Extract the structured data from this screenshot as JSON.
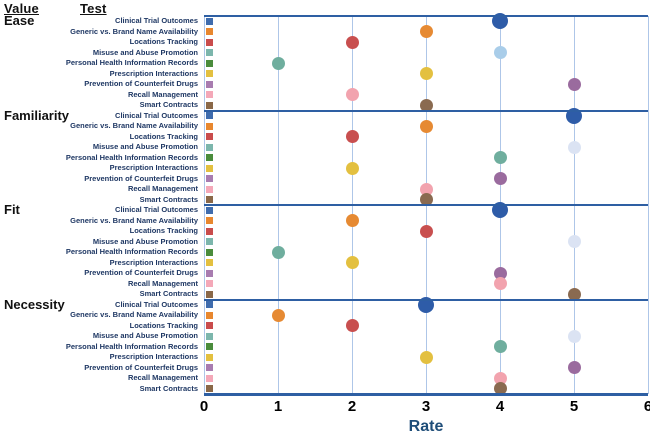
{
  "header": {
    "value_label": "Value",
    "test_label": "Test"
  },
  "colors": {
    "separator_line": "#2e5fa3",
    "gridline": "#aec6e8",
    "axis_line": "#2e5fa3",
    "test_label_text": "#1f3864",
    "group_label_text": "#111111",
    "tick_label_text": "#000000",
    "axis_title_text": "#1f4e79"
  },
  "chart_data": {
    "type": "scatter",
    "title": "",
    "xlabel": "Rate",
    "ylabel": "",
    "xlim": [
      0,
      6
    ],
    "x_ticks": [
      "0",
      "1",
      "2",
      "3",
      "4",
      "5",
      "6"
    ],
    "grid": "vertical-only",
    "legend_position": "left-of-plot-per-row",
    "value_groups": [
      "Ease",
      "Familiarity",
      "Fit",
      "Necessity"
    ],
    "tests": [
      "Clinical Trial Outcomes",
      "Generic vs. Brand Name Availability",
      "Locations Tracking",
      "Misuse and Abuse Promotion",
      "Personal Health Information Records",
      "Prescription Interactions",
      "Prevention of Counterfeit Drugs",
      "Recall Management",
      "Smart Contracts"
    ],
    "series": [
      {
        "name": "Clinical Trial Outcomes",
        "legend_color": "#3f6cad",
        "dot_colors": [
          "#2e5ca8",
          "#2e5ca8",
          "#2e5ca8",
          "#2e5ca8"
        ],
        "values": [
          4,
          5,
          4,
          3
        ]
      },
      {
        "name": "Generic vs. Brand Name Availability",
        "legend_color": "#e8872e",
        "dot_colors": [
          "#e68a33",
          "#e68a33",
          "#e68a33",
          "#e68a33"
        ],
        "values": [
          3,
          3,
          2,
          1
        ]
      },
      {
        "name": "Locations Tracking",
        "legend_color": "#c94c4c",
        "dot_colors": [
          "#c84f4f",
          "#c84f4f",
          "#c84f4f",
          "#c84f4f"
        ],
        "values": [
          2,
          2,
          3,
          2
        ]
      },
      {
        "name": "Misuse and Abuse Promotion",
        "legend_color": "#7cb6ac",
        "dot_colors": [
          "#a9cde9",
          "#dbe3f3",
          "#dbe3f3",
          "#dbe3f3"
        ],
        "values": [
          4,
          5,
          5,
          5
        ]
      },
      {
        "name": "Personal Health Information Records",
        "legend_color": "#4a8c3c",
        "dot_colors": [
          "#6fae9e",
          "#6fae9e",
          "#6fae9e",
          "#6fae9e"
        ],
        "values": [
          1,
          4,
          1,
          4
        ]
      },
      {
        "name": "Prescription Interactions",
        "legend_color": "#e3c040",
        "dot_colors": [
          "#e3c040",
          "#e3c040",
          "#e3c040",
          "#e3c040"
        ],
        "values": [
          3,
          2,
          2,
          3
        ]
      },
      {
        "name": "Prevention of Counterfeit Drugs",
        "legend_color": "#a87cb0",
        "dot_colors": [
          "#9a6b9e",
          "#9a6b9e",
          "#9a6b9e",
          "#9a6b9e"
        ],
        "values": [
          5,
          4,
          4,
          5
        ]
      },
      {
        "name": "Recall Management",
        "legend_color": "#f4a8b8",
        "dot_colors": [
          "#f2a3ae",
          "#f2a3ae",
          "#f2a3ae",
          "#f2a3ae"
        ],
        "values": [
          2,
          3,
          4,
          4
        ]
      },
      {
        "name": "Smart Contracts",
        "legend_color": "#8a6848",
        "dot_colors": [
          "#8a6a50",
          "#8a6a50",
          "#8a6a50",
          "#8a6a50"
        ],
        "values": [
          3,
          3,
          5,
          4
        ]
      }
    ]
  }
}
